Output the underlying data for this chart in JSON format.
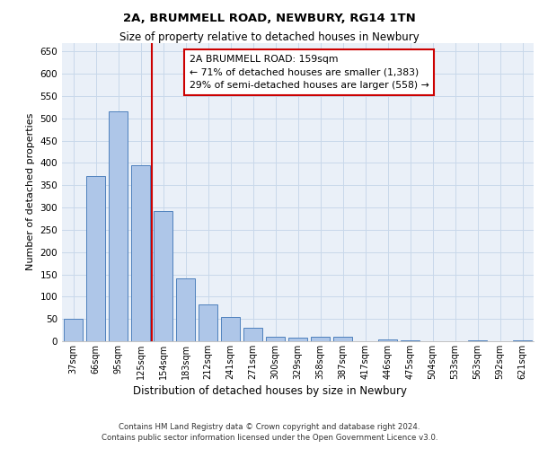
{
  "title1": "2A, BRUMMELL ROAD, NEWBURY, RG14 1TN",
  "title2": "Size of property relative to detached houses in Newbury",
  "xlabel": "Distribution of detached houses by size in Newbury",
  "ylabel": "Number of detached properties",
  "categories": [
    "37sqm",
    "66sqm",
    "95sqm",
    "125sqm",
    "154sqm",
    "183sqm",
    "212sqm",
    "241sqm",
    "271sqm",
    "300sqm",
    "329sqm",
    "358sqm",
    "387sqm",
    "417sqm",
    "446sqm",
    "475sqm",
    "504sqm",
    "533sqm",
    "563sqm",
    "592sqm",
    "621sqm"
  ],
  "values": [
    50,
    370,
    515,
    395,
    293,
    142,
    83,
    55,
    30,
    10,
    8,
    10,
    11,
    0,
    4,
    2,
    0,
    0,
    3,
    0,
    3
  ],
  "bar_color": "#aec6e8",
  "bar_edge_color": "#4f81bd",
  "grid_color": "#c8d8ea",
  "background_color": "#eaf0f8",
  "vline_color": "#cc0000",
  "annotation_box_text": "2A BRUMMELL ROAD: 159sqm\n← 71% of detached houses are smaller (1,383)\n29% of semi-detached houses are larger (558) →",
  "annotation_box_edge_color": "#cc0000",
  "ylim": [
    0,
    670
  ],
  "yticks": [
    0,
    50,
    100,
    150,
    200,
    250,
    300,
    350,
    400,
    450,
    500,
    550,
    600,
    650
  ],
  "footer_line1": "Contains HM Land Registry data © Crown copyright and database right 2024.",
  "footer_line2": "Contains public sector information licensed under the Open Government Licence v3.0."
}
